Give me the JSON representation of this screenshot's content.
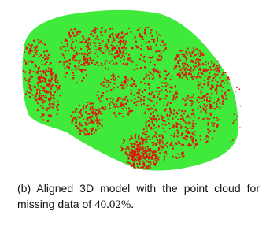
{
  "figure": {
    "caption": {
      "label": "(b)",
      "text": "Aligned 3D model with the point cloud for missing data of",
      "percent": "40.02%."
    }
  }
}
